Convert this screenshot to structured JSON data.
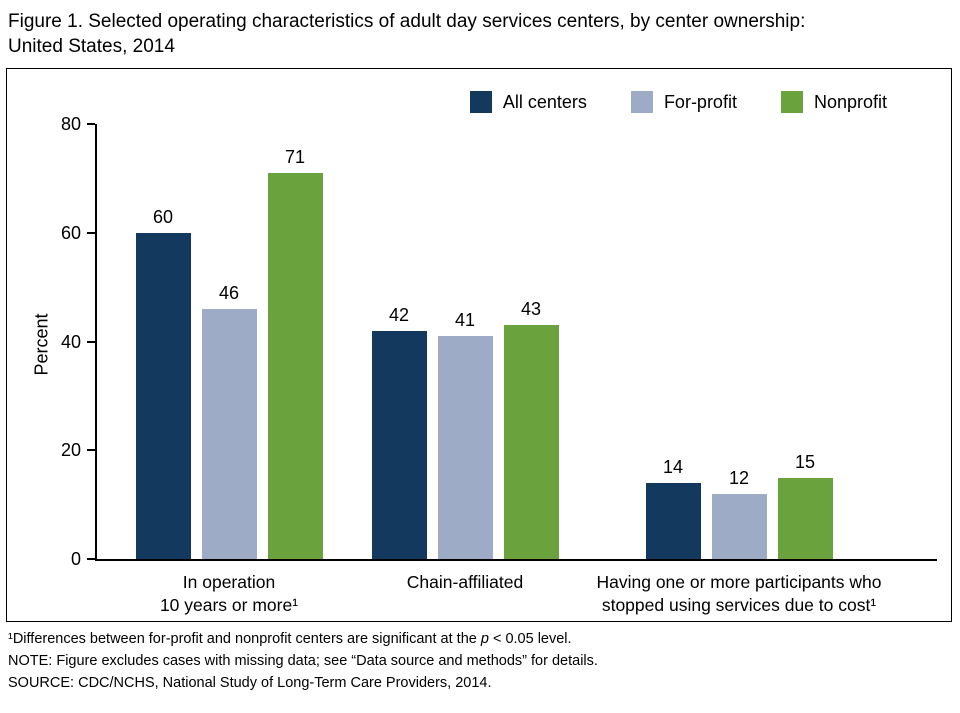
{
  "title": {
    "line1": "Figure 1. Selected operating characteristics of adult day services centers, by center ownership:",
    "line2": "United States, 2014"
  },
  "chart_data": {
    "type": "bar",
    "categories": [
      "In operation\n10 years or more¹",
      "Chain-affiliated",
      "Having one or more participants who\nstopped using services due to cost¹"
    ],
    "series": [
      {
        "name": "All centers",
        "color": "#13395f",
        "values": [
          60,
          42,
          14
        ]
      },
      {
        "name": "For-profit",
        "color": "#9dabc7",
        "values": [
          46,
          41,
          12
        ]
      },
      {
        "name": "Nonprofit",
        "color": "#6aa23d",
        "values": [
          71,
          43,
          15
        ]
      }
    ],
    "title": "Figure 1. Selected operating characteristics of adult day services centers, by center ownership: United States, 2014",
    "xlabel": "",
    "ylabel": "Percent",
    "ylim": [
      0,
      80
    ],
    "yticks": [
      0,
      20,
      40,
      60,
      80
    ],
    "grid": false,
    "legend_position": "top-right"
  },
  "footnotes": {
    "fn1_pre": "¹Differences between for-profit and nonprofit centers are significant at the ",
    "fn1_italic": "p",
    "fn1_post": " < 0.05 level.",
    "note": "NOTE: Figure excludes cases with missing data; see “Data source and methods” for details.",
    "source": "SOURCE: CDC/NCHS, National Study of Long-Term Care Providers, 2014."
  }
}
